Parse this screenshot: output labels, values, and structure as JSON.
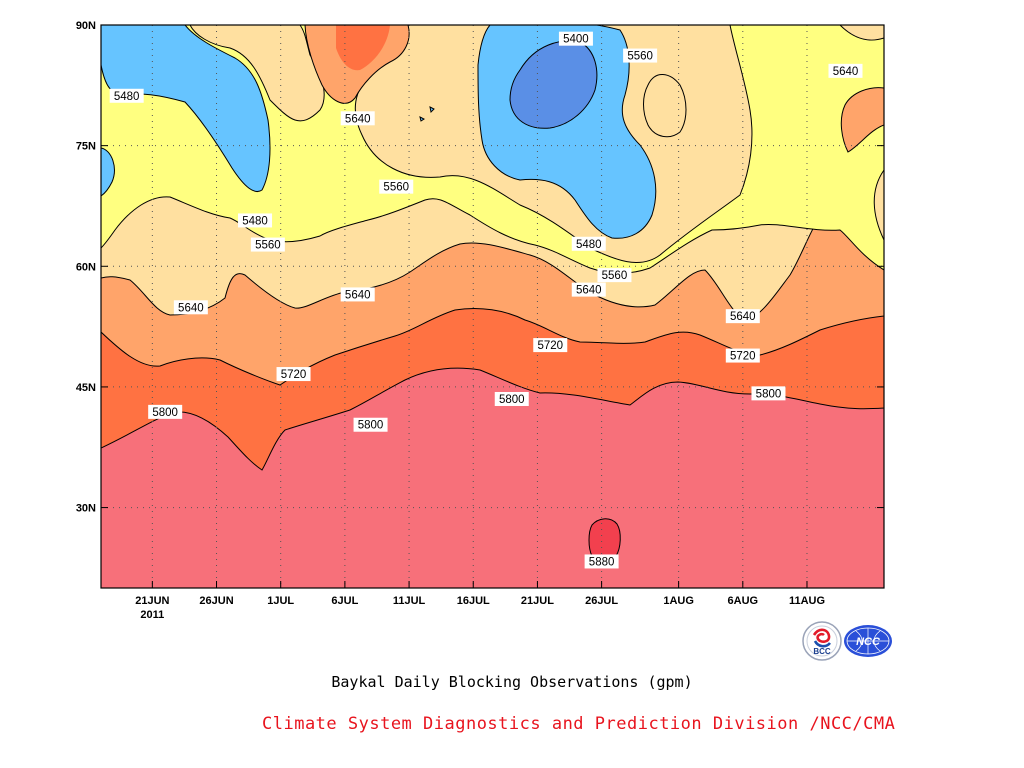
{
  "chart_data": {
    "type": "contour",
    "title": "Baykal Daily Blocking Observations (gpm)",
    "x_ticks": [
      "21JUN",
      "26JUN",
      "1JUL",
      "6JUL",
      "11JUL",
      "16JUL",
      "21JUL",
      "26JUL",
      "1AUG",
      "6AUG",
      "11AUG"
    ],
    "x_year_label": "2011",
    "y_ticks": [
      "90N",
      "75N",
      "60N",
      "45N",
      "30N"
    ],
    "xlim": [
      "2011-06-17",
      "2011-08-17"
    ],
    "ylim": [
      20,
      90
    ],
    "levels": [
      5400,
      5480,
      5560,
      5640,
      5720,
      5800,
      5880
    ],
    "level_colors": {
      "below_5400": "#5a8fe6",
      "5400_5480": "#66c4ff",
      "5480_5560": "#ffff80",
      "5560_5640": "#ffe0a0",
      "5640_5720": "#ffa46a",
      "5720_5800": "#ff7242",
      "5800_5880": "#f7707a",
      "above_5880": "#f2404e"
    },
    "contour_labels": [
      {
        "value": "5400",
        "date": "2011-07-24",
        "lat": 88.3
      },
      {
        "value": "5560",
        "date": "2011-07-29",
        "lat": 86.2
      },
      {
        "value": "5480",
        "date": "2011-06-19",
        "lat": 81.2
      },
      {
        "value": "5640",
        "date": "2011-08-14",
        "lat": 84.3
      },
      {
        "value": "5640",
        "date": "2011-07-07",
        "lat": 78.4
      },
      {
        "value": "5560",
        "date": "2011-07-10",
        "lat": 69.9
      },
      {
        "value": "5480",
        "date": "2011-06-29",
        "lat": 65.7
      },
      {
        "value": "5480",
        "date": "2011-07-25",
        "lat": 62.8
      },
      {
        "value": "5560",
        "date": "2011-06-30",
        "lat": 62.7
      },
      {
        "value": "5560",
        "date": "2011-07-27",
        "lat": 58.9
      },
      {
        "value": "5640",
        "date": "2011-07-25",
        "lat": 57.1
      },
      {
        "value": "5640",
        "date": "2011-07-07",
        "lat": 56.5
      },
      {
        "value": "5640",
        "date": "2011-06-24",
        "lat": 54.9
      },
      {
        "value": "5640",
        "date": "2011-08-06",
        "lat": 53.8
      },
      {
        "value": "5720",
        "date": "2011-07-22",
        "lat": 50.2
      },
      {
        "value": "5720",
        "date": "2011-08-06",
        "lat": 48.9
      },
      {
        "value": "5720",
        "date": "2011-07-02",
        "lat": 46.6
      },
      {
        "value": "5800",
        "date": "2011-08-08",
        "lat": 44.2
      },
      {
        "value": "5800",
        "date": "2011-07-19",
        "lat": 43.5
      },
      {
        "value": "5800",
        "date": "2011-06-22",
        "lat": 41.9
      },
      {
        "value": "5800",
        "date": "2011-07-08",
        "lat": 40.3
      },
      {
        "value": "5880",
        "date": "2011-07-26",
        "lat": 23.3
      }
    ],
    "grid": true
  },
  "caption": {
    "title": "Baykal Daily Blocking Observations (gpm)",
    "credit": "Climate System Diagnostics and Prediction Division /NCC/CMA"
  },
  "logos": {
    "left": "BCC",
    "right": "NCC"
  }
}
